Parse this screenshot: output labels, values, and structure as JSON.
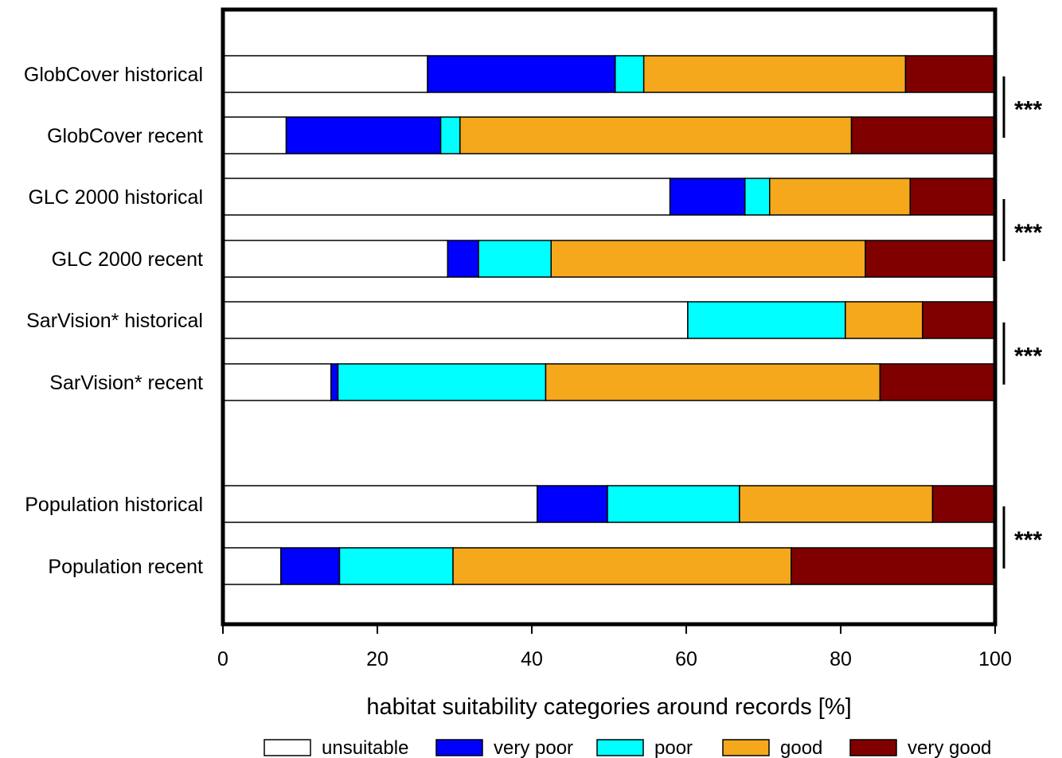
{
  "chart_data": {
    "type": "bar",
    "orientation": "horizontal",
    "stacked": true,
    "xlabel": "habitat suitability categories around records [%]",
    "ylabel": "",
    "xlim": [
      0,
      100
    ],
    "xticks": [
      "0",
      "20",
      "40",
      "60",
      "80",
      "100"
    ],
    "xtick_values": [
      0,
      20,
      40,
      60,
      80,
      100
    ],
    "grid": false,
    "legend_position": "bottom",
    "categories": [
      "GlobCover historical",
      "GlobCover recent",
      "GLC 2000 historical",
      "GLC 2000 recent",
      "SarVision* historical",
      "SarVision* recent",
      "Population historical",
      "Population recent"
    ],
    "series": [
      {
        "name": "unsuitable",
        "color": "#ffffff",
        "values": [
          26.5,
          8.2,
          57.9,
          29.1,
          60.2,
          14.0,
          40.7,
          7.5
        ]
      },
      {
        "name": "very poor",
        "color": "#0000ff",
        "values": [
          24.3,
          20.0,
          9.7,
          4.0,
          0.0,
          0.9,
          9.1,
          7.6
        ]
      },
      {
        "name": "poor",
        "color": "#00ffff",
        "values": [
          3.7,
          2.5,
          3.2,
          9.4,
          20.4,
          26.9,
          17.1,
          14.7
        ]
      },
      {
        "name": "good",
        "color": "#f5a81c",
        "values": [
          33.9,
          50.7,
          18.2,
          40.7,
          10.0,
          43.3,
          25.0,
          43.8
        ]
      },
      {
        "name": "very good",
        "color": "#800000",
        "values": [
          11.6,
          18.6,
          11.0,
          16.8,
          9.4,
          14.9,
          8.1,
          26.4
        ]
      }
    ],
    "annotations": [
      {
        "text": "***",
        "pair": [
          "GlobCover historical",
          "GlobCover recent"
        ]
      },
      {
        "text": "***",
        "pair": [
          "GLC 2000 historical",
          "GLC 2000 recent"
        ]
      },
      {
        "text": "***",
        "pair": [
          "SarVision* historical",
          "SarVision* recent"
        ]
      },
      {
        "text": "***",
        "pair": [
          "Population historical",
          "Population recent"
        ]
      }
    ]
  }
}
